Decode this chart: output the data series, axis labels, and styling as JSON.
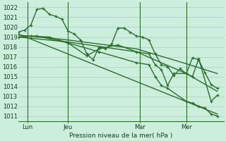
{
  "bg_color": "#cceedd",
  "grid_color": "#aacccc",
  "line_color": "#2d6e2d",
  "title": "Pression niveau de la mer( hPa )",
  "ylim": [
    1010.5,
    1022.5
  ],
  "yticks": [
    1011,
    1012,
    1013,
    1014,
    1015,
    1016,
    1017,
    1018,
    1019,
    1020,
    1021,
    1022
  ],
  "xlim": [
    0,
    33
  ],
  "xtick_labels": [
    "Lun",
    "Jeu",
    "Mar",
    "Mer"
  ],
  "xtick_positions": [
    1.5,
    8,
    19.5,
    27
  ],
  "vline_positions": [
    1.5,
    8,
    19.5,
    27
  ],
  "series": [
    {
      "x": [
        0,
        1,
        2,
        3,
        4,
        5,
        6,
        7,
        8,
        9,
        10,
        11,
        12,
        13,
        14,
        15,
        16,
        17,
        18,
        19,
        20,
        21,
        22,
        23,
        24,
        25,
        26,
        27,
        28,
        29,
        30,
        31,
        32
      ],
      "y": [
        1019.5,
        1019.7,
        1020.2,
        1021.8,
        1021.9,
        1021.3,
        1021.1,
        1020.8,
        1019.6,
        1019.3,
        1018.7,
        1017.3,
        1016.7,
        1018.0,
        1017.8,
        1018.3,
        1019.9,
        1019.9,
        1019.5,
        1019.1,
        1019.0,
        1018.7,
        1017.3,
        1016.2,
        1016.0,
        1015.1,
        1015.8,
        1015.3,
        1016.9,
        1016.7,
        1015.4,
        1014.2,
        1013.8
      ],
      "has_markers": true,
      "lw": 1.0
    },
    {
      "x": [
        0,
        32
      ],
      "y": [
        1019.3,
        1011.2
      ],
      "has_markers": false,
      "lw": 1.0
    },
    {
      "x": [
        0,
        8,
        19,
        27,
        32
      ],
      "y": [
        1019.2,
        1018.7,
        1017.8,
        1016.3,
        1015.3
      ],
      "has_markers": false,
      "lw": 1.0
    },
    {
      "x": [
        0,
        8,
        19,
        27,
        32
      ],
      "y": [
        1019.0,
        1018.5,
        1017.5,
        1015.3,
        1013.5
      ],
      "has_markers": false,
      "lw": 1.0
    },
    {
      "x": [
        0,
        2,
        5,
        8,
        11,
        13,
        16,
        19,
        21,
        22,
        23,
        24,
        25,
        27,
        28,
        29,
        31,
        32
      ],
      "y": [
        1019.0,
        1019.1,
        1019.0,
        1018.4,
        1017.1,
        1017.8,
        1018.2,
        1017.5,
        1017.3,
        1016.2,
        1015.7,
        1014.1,
        1015.3,
        1015.3,
        1015.0,
        1016.8,
        1012.5,
        1013.1
      ],
      "has_markers": true,
      "lw": 1.0
    },
    {
      "x": [
        0,
        3,
        8,
        13,
        19,
        21,
        22,
        23,
        24,
        27,
        28,
        29,
        30,
        31,
        32
      ],
      "y": [
        1019.0,
        1019.1,
        1018.4,
        1017.5,
        1016.4,
        1016.2,
        1015.0,
        1014.1,
        1013.8,
        1012.5,
        1012.3,
        1012.0,
        1011.8,
        1011.2,
        1011.0
      ],
      "has_markers": true,
      "lw": 1.0
    }
  ]
}
